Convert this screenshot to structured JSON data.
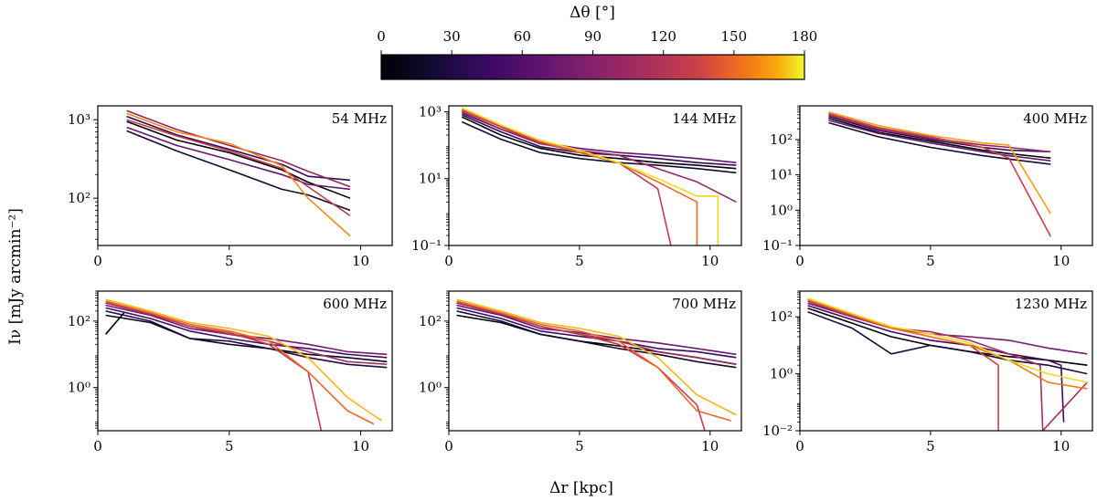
{
  "figure": {
    "xlabel": "Δr  [kpc]",
    "ylabel": "Iν  [mJy arcmin⁻²]",
    "colorbar": {
      "label": "Δθ  [°]",
      "ticks": [
        "0",
        "30",
        "60",
        "90",
        "120",
        "150",
        "180"
      ],
      "range": [
        0,
        180
      ],
      "colormap": "inferno"
    }
  },
  "chart_data": [
    {
      "type": "line",
      "title": "54 MHz",
      "xlim": [
        0,
        11.2
      ],
      "ylim": [
        25,
        1500
      ],
      "yscale": "log",
      "xticks": [
        0,
        5,
        10
      ],
      "yticks": [
        100,
        1000
      ],
      "ytick_labels": [
        "10²",
        "10³"
      ],
      "series": [
        {
          "angle": 0,
          "x": [
            1.1,
            3,
            5,
            7,
            8,
            9.6
          ],
          "y": [
            950,
            550,
            380,
            230,
            160,
            100
          ]
        },
        {
          "angle": 20,
          "x": [
            1.1,
            3,
            5,
            7,
            8,
            9.6
          ],
          "y": [
            720,
            400,
            230,
            130,
            110,
            70
          ]
        },
        {
          "angle": 40,
          "x": [
            1.1,
            3,
            5,
            7,
            8,
            9.6
          ],
          "y": [
            1100,
            640,
            420,
            270,
            190,
            170
          ]
        },
        {
          "angle": 70,
          "x": [
            1.1,
            3,
            5,
            7,
            8,
            9.6
          ],
          "y": [
            800,
            470,
            310,
            200,
            150,
            130
          ]
        },
        {
          "angle": 100,
          "x": [
            1.1,
            3,
            5,
            7,
            8,
            9.6
          ],
          "y": [
            1300,
            750,
            470,
            300,
            220,
            140
          ]
        },
        {
          "angle": 130,
          "x": [
            1.1,
            3,
            5,
            7,
            8,
            9.6
          ],
          "y": [
            1000,
            620,
            400,
            240,
            140,
            60
          ]
        },
        {
          "angle": 160,
          "x": [
            1.1,
            3,
            5,
            7,
            8,
            9.6
          ],
          "y": [
            1200,
            700,
            500,
            260,
            100,
            33
          ]
        }
      ]
    },
    {
      "type": "line",
      "title": "144 MHz",
      "xlim": [
        0,
        11.2
      ],
      "ylim": [
        0.1,
        1500
      ],
      "yscale": "log",
      "xticks": [
        0,
        5,
        10
      ],
      "yticks": [
        0.1,
        10,
        1000
      ],
      "ytick_labels": [
        "10⁻¹",
        "10¹",
        "10³"
      ],
      "series": [
        {
          "angle": 0,
          "x": [
            0.5,
            2,
            3.5,
            5,
            6.5,
            8,
            9.5,
            11
          ],
          "y": [
            700,
            200,
            80,
            50,
            40,
            30,
            25,
            20
          ]
        },
        {
          "angle": 20,
          "x": [
            0.5,
            2,
            3.5,
            5,
            6.5,
            8,
            9.5,
            11
          ],
          "y": [
            500,
            150,
            60,
            40,
            30,
            25,
            20,
            15
          ]
        },
        {
          "angle": 40,
          "x": [
            0.5,
            2,
            3.5,
            5,
            6.5,
            8,
            9.5,
            11
          ],
          "y": [
            800,
            250,
            90,
            60,
            50,
            40,
            30,
            25
          ]
        },
        {
          "angle": 70,
          "x": [
            0.5,
            2,
            3.5,
            5,
            6.5,
            8,
            9.5,
            11
          ],
          "y": [
            900,
            300,
            120,
            80,
            60,
            50,
            40,
            30
          ]
        },
        {
          "angle": 100,
          "x": [
            0.5,
            2,
            3.5,
            5,
            6.5,
            8,
            9.5,
            11
          ],
          "y": [
            1000,
            300,
            110,
            70,
            50,
            20,
            8,
            2
          ]
        },
        {
          "angle": 130,
          "x": [
            0.5,
            2,
            3.5,
            5,
            6.5,
            8,
            8.5
          ],
          "y": [
            1100,
            350,
            120,
            60,
            30,
            5,
            0.1
          ]
        },
        {
          "angle": 150,
          "x": [
            0.5,
            2,
            3.5,
            5,
            6.5,
            8,
            9.5,
            9.5
          ],
          "y": [
            1200,
            380,
            130,
            60,
            30,
            8,
            2,
            0.1
          ]
        },
        {
          "angle": 175,
          "x": [
            0.5,
            2,
            3.5,
            5,
            6.5,
            8,
            9.5,
            10.3,
            10.3
          ],
          "y": [
            1300,
            400,
            140,
            70,
            30,
            10,
            3,
            3,
            0.1
          ]
        }
      ]
    },
    {
      "type": "line",
      "title": "400 MHz",
      "xlim": [
        0,
        11.2
      ],
      "ylim": [
        0.1,
        900
      ],
      "yscale": "log",
      "xticks": [
        0,
        5,
        10
      ],
      "yticks": [
        0.1,
        1,
        10,
        100
      ],
      "ytick_labels": [
        "10⁻¹",
        "10⁰",
        "10¹",
        "10²"
      ],
      "series": [
        {
          "angle": 0,
          "x": [
            1.1,
            3,
            5,
            7,
            8,
            9.6
          ],
          "y": [
            400,
            160,
            90,
            50,
            40,
            30
          ]
        },
        {
          "angle": 20,
          "x": [
            1.1,
            3,
            5,
            7,
            8,
            9.6
          ],
          "y": [
            300,
            120,
            60,
            35,
            28,
            20
          ]
        },
        {
          "angle": 40,
          "x": [
            1.1,
            3,
            5,
            7,
            8,
            9.6
          ],
          "y": [
            450,
            180,
            100,
            60,
            50,
            45
          ]
        },
        {
          "angle": 70,
          "x": [
            1.1,
            3,
            5,
            7,
            8,
            9.6
          ],
          "y": [
            350,
            150,
            80,
            45,
            35,
            25
          ]
        },
        {
          "angle": 100,
          "x": [
            1.1,
            3,
            5,
            7,
            8,
            9.6
          ],
          "y": [
            500,
            200,
            110,
            70,
            60,
            45
          ]
        },
        {
          "angle": 135,
          "x": [
            1.1,
            3,
            5,
            7,
            8,
            9.6
          ],
          "y": [
            550,
            220,
            120,
            60,
            30,
            0.18
          ]
        },
        {
          "angle": 165,
          "x": [
            1.1,
            3,
            5,
            7,
            8,
            9.6
          ],
          "y": [
            600,
            250,
            130,
            80,
            70,
            0.8
          ]
        }
      ]
    },
    {
      "type": "line",
      "title": "600 MHz",
      "xlim": [
        0,
        11.2
      ],
      "ylim": [
        0.05,
        800
      ],
      "yscale": "log",
      "xticks": [
        0,
        5,
        10
      ],
      "yticks": [
        1,
        100
      ],
      "ytick_labels": [
        "10⁰",
        "10²"
      ],
      "series": [
        {
          "angle": 0,
          "x": [
            0.3,
            1
          ],
          "y": [
            40,
            180
          ]
        },
        {
          "angle": 10,
          "x": [
            0.3,
            2,
            3.5,
            5,
            6.5,
            8,
            9.5,
            11
          ],
          "y": [
            150,
            90,
            30,
            20,
            15,
            10,
            8,
            6
          ]
        },
        {
          "angle": 30,
          "x": [
            0.3,
            2,
            3.5,
            5,
            6.5,
            8,
            9.5,
            11
          ],
          "y": [
            200,
            100,
            30,
            25,
            15,
            8,
            5,
            4
          ]
        },
        {
          "angle": 50,
          "x": [
            0.3,
            2,
            3.5,
            5,
            6.5,
            8,
            9.5,
            11
          ],
          "y": [
            250,
            120,
            50,
            30,
            20,
            15,
            10,
            8
          ]
        },
        {
          "angle": 80,
          "x": [
            0.3,
            2,
            3.5,
            5,
            6.5,
            8,
            9.5,
            11
          ],
          "y": [
            300,
            150,
            60,
            40,
            30,
            20,
            12,
            10
          ]
        },
        {
          "angle": 110,
          "x": [
            0.3,
            2,
            3.5,
            5,
            6.5,
            8,
            9.5,
            11
          ],
          "y": [
            350,
            160,
            70,
            40,
            25,
            12,
            6,
            5
          ]
        },
        {
          "angle": 130,
          "x": [
            0.3,
            2,
            3.5,
            5,
            6.5,
            8,
            8.5
          ],
          "y": [
            380,
            170,
            70,
            45,
            20,
            3,
            0.05
          ]
        },
        {
          "angle": 150,
          "x": [
            0.3,
            2,
            3.5,
            5,
            6.5,
            8,
            9.5,
            10.5
          ],
          "y": [
            400,
            180,
            80,
            50,
            25,
            3,
            0.2,
            0.08
          ]
        },
        {
          "angle": 170,
          "x": [
            0.3,
            2,
            3.5,
            5,
            6.5,
            8,
            9.5,
            10.8
          ],
          "y": [
            450,
            200,
            90,
            60,
            35,
            8,
            0.5,
            0.1
          ]
        }
      ]
    },
    {
      "type": "line",
      "title": "700 MHz",
      "xlim": [
        0,
        11.2
      ],
      "ylim": [
        0.05,
        800
      ],
      "yscale": "log",
      "xticks": [
        0,
        5,
        10
      ],
      "yticks": [
        1,
        100
      ],
      "ytick_labels": [
        "10⁰",
        "10²"
      ],
      "series": [
        {
          "angle": 0,
          "x": [
            0.3,
            2,
            3.5,
            5,
            6.5,
            8,
            9.5,
            11
          ],
          "y": [
            150,
            90,
            40,
            25,
            18,
            12,
            8,
            5
          ]
        },
        {
          "angle": 20,
          "x": [
            0.3,
            2,
            3.5,
            5,
            6.5,
            8,
            9.5,
            11
          ],
          "y": [
            200,
            100,
            40,
            25,
            15,
            10,
            6,
            4
          ]
        },
        {
          "angle": 45,
          "x": [
            0.3,
            2,
            3.5,
            5,
            6.5,
            8,
            9.5,
            11
          ],
          "y": [
            250,
            120,
            50,
            35,
            25,
            15,
            12,
            8
          ]
        },
        {
          "angle": 75,
          "x": [
            0.3,
            2,
            3.5,
            5,
            6.5,
            8,
            9.5,
            11
          ],
          "y": [
            300,
            150,
            60,
            45,
            30,
            22,
            15,
            10
          ]
        },
        {
          "angle": 105,
          "x": [
            0.3,
            2,
            3.5,
            5,
            6.5,
            8,
            9.5,
            11
          ],
          "y": [
            350,
            160,
            70,
            40,
            25,
            12,
            8,
            5
          ]
        },
        {
          "angle": 130,
          "x": [
            0.3,
            2,
            3.5,
            5,
            6.5,
            8,
            9.5,
            9.8
          ],
          "y": [
            380,
            170,
            70,
            40,
            20,
            4,
            0.3,
            0.05
          ]
        },
        {
          "angle": 150,
          "x": [
            0.3,
            2,
            3.5,
            5,
            6.5,
            8,
            9.5,
            10.8
          ],
          "y": [
            400,
            180,
            80,
            50,
            25,
            4,
            0.2,
            0.1
          ]
        },
        {
          "angle": 170,
          "x": [
            0.3,
            2,
            3.5,
            5,
            6.5,
            8,
            9.5,
            11
          ],
          "y": [
            450,
            200,
            90,
            60,
            35,
            8,
            0.6,
            0.15
          ]
        }
      ]
    },
    {
      "type": "line",
      "title": "1230 MHz",
      "xlim": [
        0,
        11.2
      ],
      "ylim": [
        0.01,
        800
      ],
      "yscale": "log",
      "xticks": [
        0,
        5,
        10
      ],
      "yticks": [
        0.01,
        1,
        100
      ],
      "ytick_labels": [
        "10⁻²",
        "10⁰",
        "10²"
      ],
      "series": [
        {
          "angle": 0,
          "x": [
            0.3,
            2,
            3.5,
            5,
            6.5,
            8,
            9.5,
            11
          ],
          "y": [
            200,
            60,
            20,
            10,
            6,
            4,
            3,
            2
          ]
        },
        {
          "angle": 25,
          "x": [
            0.3,
            2,
            3.5,
            5,
            6.5,
            8,
            9.5,
            11
          ],
          "y": [
            150,
            40,
            5,
            10,
            6,
            3,
            2,
            1
          ]
        },
        {
          "angle": 50,
          "x": [
            0.3,
            2,
            3.5,
            5,
            6.5,
            8,
            9.5,
            10,
            10.1
          ],
          "y": [
            250,
            80,
            30,
            15,
            10,
            5,
            3,
            2,
            0.02
          ]
        },
        {
          "angle": 80,
          "x": [
            0.3,
            2,
            3.5,
            5,
            6.5,
            8,
            9.5,
            11
          ],
          "y": [
            300,
            100,
            40,
            25,
            20,
            15,
            8,
            5
          ]
        },
        {
          "angle": 110,
          "x": [
            0.3,
            2,
            3.5,
            5,
            6.5,
            8,
            9.2,
            9.3,
            11
          ],
          "y": [
            350,
            100,
            40,
            30,
            15,
            5,
            2,
            0.01,
            0.5
          ]
        },
        {
          "angle": 135,
          "x": [
            0.3,
            2,
            3.5,
            5,
            6.5,
            7.6,
            7.6
          ],
          "y": [
            380,
            110,
            40,
            20,
            10,
            2,
            0.01
          ]
        },
        {
          "angle": 155,
          "x": [
            0.3,
            2,
            3.5,
            5,
            6.5,
            8,
            9.5,
            11
          ],
          "y": [
            400,
            120,
            40,
            20,
            10,
            3,
            0.5,
            0.3
          ]
        },
        {
          "angle": 175,
          "x": [
            0.3,
            2,
            3.5,
            5,
            6.5,
            8,
            9.5,
            11
          ],
          "y": [
            450,
            130,
            45,
            25,
            12,
            3,
            1,
            0.5
          ]
        }
      ]
    }
  ]
}
